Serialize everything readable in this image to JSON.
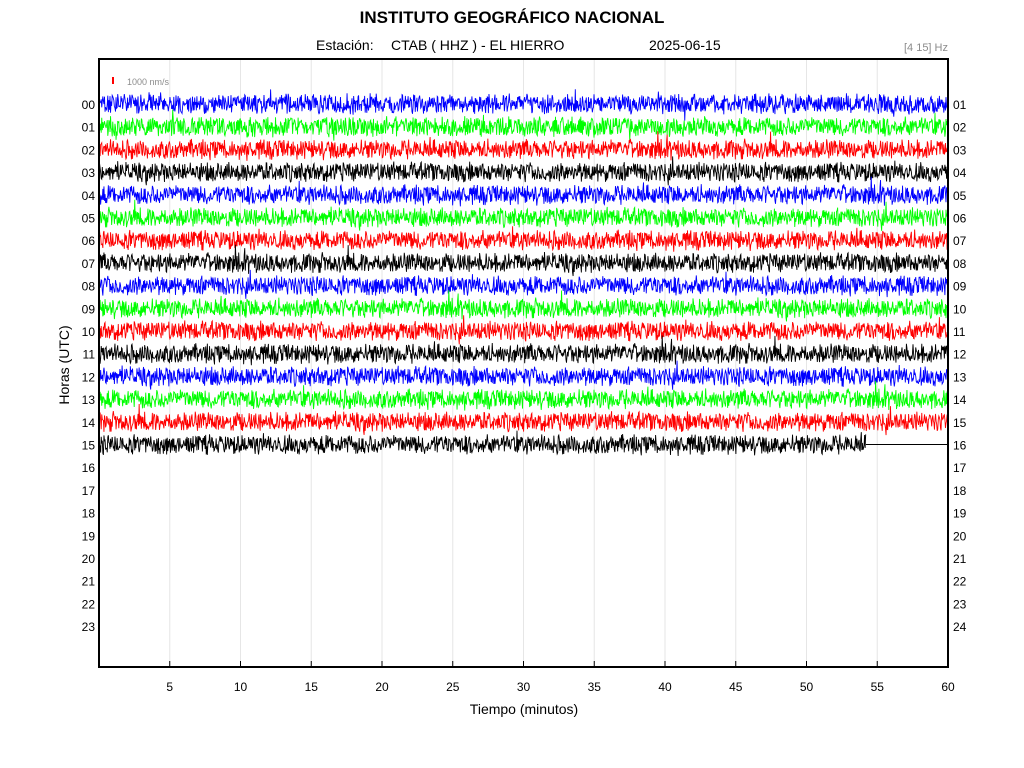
{
  "header": {
    "title": "INSTITUTO GEOGRÁFICO NACIONAL",
    "station_prefix": "Estación:",
    "station": "CTAB ( HHZ ) - EL HIERRO",
    "date": "2025-06-15",
    "filter": "[4 15] Hz"
  },
  "chart_data": {
    "type": "line",
    "title": "INSTITUTO GEOGRÁFICO NACIONAL",
    "xlabel": "Tiempo (minutos)",
    "ylabel": "Horas (UTC)",
    "xlim": [
      0,
      60
    ],
    "x_ticks": [
      "5",
      "10",
      "15",
      "20",
      "25",
      "30",
      "35",
      "40",
      "45",
      "50",
      "55",
      "60"
    ],
    "y_ticks_left": [
      "00",
      "01",
      "02",
      "03",
      "04",
      "05",
      "06",
      "07",
      "08",
      "09",
      "10",
      "11",
      "12",
      "13",
      "14",
      "15",
      "16",
      "17",
      "18",
      "19",
      "20",
      "21",
      "22",
      "23"
    ],
    "y_ticks_right": [
      "01",
      "02",
      "03",
      "04",
      "05",
      "06",
      "07",
      "08",
      "09",
      "10",
      "11",
      "12",
      "13",
      "14",
      "15",
      "16",
      "17",
      "18",
      "19",
      "20",
      "21",
      "22",
      "23",
      "24"
    ],
    "grid": "vertical",
    "scale_bar": {
      "label": "1000 nm/s",
      "color": "#ff0000"
    },
    "trace_colors": [
      "#0000ff",
      "#00ff00",
      "#ff0000",
      "#000000"
    ],
    "series": [
      {
        "hour": "00",
        "color": "#0000ff",
        "end_minute": 60
      },
      {
        "hour": "01",
        "color": "#00ff00",
        "end_minute": 60
      },
      {
        "hour": "02",
        "color": "#ff0000",
        "end_minute": 60
      },
      {
        "hour": "03",
        "color": "#000000",
        "end_minute": 60
      },
      {
        "hour": "04",
        "color": "#0000ff",
        "end_minute": 60
      },
      {
        "hour": "05",
        "color": "#00ff00",
        "end_minute": 60
      },
      {
        "hour": "06",
        "color": "#ff0000",
        "end_minute": 60
      },
      {
        "hour": "07",
        "color": "#000000",
        "end_minute": 60
      },
      {
        "hour": "08",
        "color": "#0000ff",
        "end_minute": 60
      },
      {
        "hour": "09",
        "color": "#00ff00",
        "end_minute": 60
      },
      {
        "hour": "10",
        "color": "#ff0000",
        "end_minute": 60
      },
      {
        "hour": "11",
        "color": "#000000",
        "end_minute": 60
      },
      {
        "hour": "12",
        "color": "#0000ff",
        "end_minute": 60
      },
      {
        "hour": "13",
        "color": "#00ff00",
        "end_minute": 60
      },
      {
        "hour": "14",
        "color": "#ff0000",
        "end_minute": 60
      },
      {
        "hour": "15",
        "color": "#000000",
        "end_minute": 54.2
      }
    ]
  }
}
